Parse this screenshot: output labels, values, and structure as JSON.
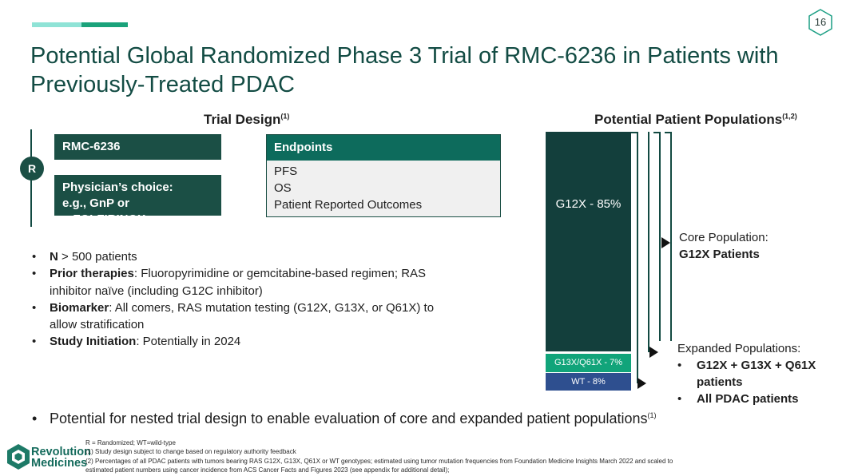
{
  "page_number": "16",
  "title": "Potential Global Randomized Phase 3 Trial of RMC-6236 in Patients with Previously-Treated PDAC",
  "trial_design": {
    "heading": "Trial Design",
    "heading_ref": "(1)",
    "randomize_label": "R",
    "arm1": "RMC-6236",
    "arm2_line1": "Physician’s choice:",
    "arm2_line2": "e.g., GnP or mFOLFIRINOX",
    "endpoints_title": "Endpoints",
    "endpoints": [
      "PFS",
      "OS",
      "Patient Reported Outcomes"
    ]
  },
  "bullets": [
    {
      "bold": "N",
      "text": " > 500 patients"
    },
    {
      "bold": "Prior therapies",
      "text": ": Fluoropyrimidine or gemcitabine-based regimen; RAS inhibitor naïve (including G12C inhibitor)"
    },
    {
      "bold": "Biomarker",
      "text": ": All comers, RAS mutation testing (G12X, G13X, or Q61X) to allow stratification"
    },
    {
      "bold": "Study Initiation",
      "text": ": Potentially in 2024"
    }
  ],
  "populations": {
    "heading": "Potential Patient Populations",
    "heading_ref": "(1,2)",
    "segments": [
      {
        "label": "G12X - 85%",
        "percent": 85,
        "color": "#133f3c"
      },
      {
        "label": "G13X/Q61X - 7%",
        "percent": 7,
        "color": "#11a47a"
      },
      {
        "label": "WT - 8%",
        "percent": 8,
        "color": "#2e4f8f"
      }
    ],
    "core_label": "Core Population:",
    "core_value": "G12X Patients",
    "expanded_label": "Expanded Populations:",
    "expanded_items": [
      "G12X + G13X + Q61X patients",
      "All PDAC patients"
    ]
  },
  "nested_note": {
    "text": "Potential for nested trial design to enable evaluation of core and expanded patient populations",
    "ref": "(1)"
  },
  "footnotes": [
    "R = Randomized; WT=wild-type",
    "(1) Study design subject to change based on regulatory authority feedback",
    "(2) Percentages of all PDAC patients with tumors bearing RAS G12X, G13X, Q61X or WT genotypes; estimated using tumor mutation frequencies from Foundation Medicine Insights March 2022 and scaled to",
    "estimated patient numbers using cancer incidence from ACS Cancer Facts and Figures 2023 (see appendix for additional detail);"
  ],
  "logo": {
    "line1": "Revolution",
    "line2": "Medicines"
  },
  "colors": {
    "title": "#134c44",
    "dark_green": "#1b4f45",
    "teal": "#0d6b5c",
    "accent": "#1aa27a"
  }
}
